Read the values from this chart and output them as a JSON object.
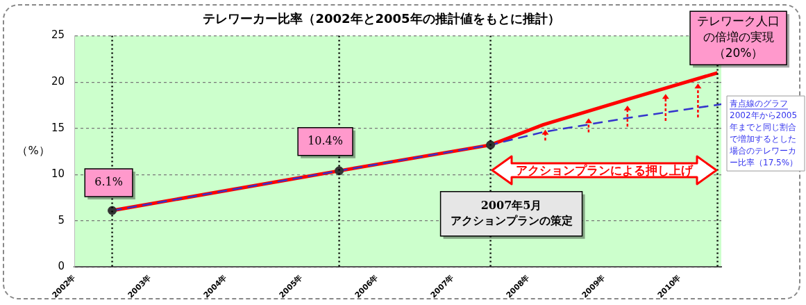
{
  "chart_data": {
    "type": "line",
    "title": "テレワーカー比率（2002年と2005年の推計値をもとに推計）",
    "ylabel": "（%）",
    "xlim": [
      2002,
      2010.55
    ],
    "xticks": [
      {
        "value": 2002,
        "label": "2002年"
      },
      {
        "value": 2003,
        "label": "2003年"
      },
      {
        "value": 2004,
        "label": "2004年"
      },
      {
        "value": 2005,
        "label": "2005年"
      },
      {
        "value": 2006,
        "label": "2006年"
      },
      {
        "value": 2007,
        "label": "2007年"
      },
      {
        "value": 2008,
        "label": "2008年"
      },
      {
        "value": 2009,
        "label": "2009年"
      },
      {
        "value": 2010,
        "label": "2010年"
      }
    ],
    "ylim": [
      0,
      25
    ],
    "yticks": [
      0,
      5,
      10,
      15,
      20,
      25
    ],
    "grid": "y",
    "legend": false,
    "series": [
      {
        "type": "line",
        "color": "#3333cc",
        "line_style": "dashed",
        "marker": "none",
        "x": [
          2002.5,
          2005.5,
          2007.5,
          2008.2,
          2009.3,
          2010.55
        ],
        "values": [
          6.1,
          10.4,
          13.2,
          14.6,
          16.1,
          17.6
        ]
      },
      {
        "type": "line",
        "color": "#ff0000",
        "line_style": "solid",
        "marker": "none",
        "x": [
          2002.5,
          2005.5,
          2007.5,
          2008.2,
          2009.3,
          2010.5
        ],
        "values": [
          6.1,
          10.4,
          13.2,
          15.4,
          18.1,
          21
        ]
      },
      {
        "type": "scatter",
        "color": "#333333",
        "marker": "circle",
        "x": [
          2002.5,
          2005.5,
          2007.5
        ],
        "values": [
          6.1,
          10.4,
          13.2
        ]
      }
    ],
    "ref_lines": [
      {
        "axis": "x",
        "value": 2002.5,
        "color": "#000000",
        "line_style": "dotted"
      },
      {
        "axis": "x",
        "value": 2005.5,
        "color": "#000000",
        "line_style": "dotted"
      },
      {
        "axis": "x",
        "value": 2007.5,
        "color": "#000000",
        "line_style": "dotted"
      },
      {
        "axis": "x",
        "value": 2010.5,
        "color": "#000000",
        "line_style": "dotted"
      }
    ],
    "annotations": [
      {
        "text": "6.1%",
        "x": 2002.5,
        "y": 6.1
      },
      {
        "text": "10.4%",
        "x": 2005.5,
        "y": 10.4
      },
      {
        "text": "テレワーク人口の倍増の実現（20%）",
        "x": 2010.5,
        "y": 21
      },
      "2007年5月",
      "アクションプランの策定",
      "アクションプランによる押し上げ",
      "青点線のグラフ",
      "2002年から2005年までと同じ割合で増加するとした場合のテレワーカー比率（17.5%）"
    ]
  }
}
